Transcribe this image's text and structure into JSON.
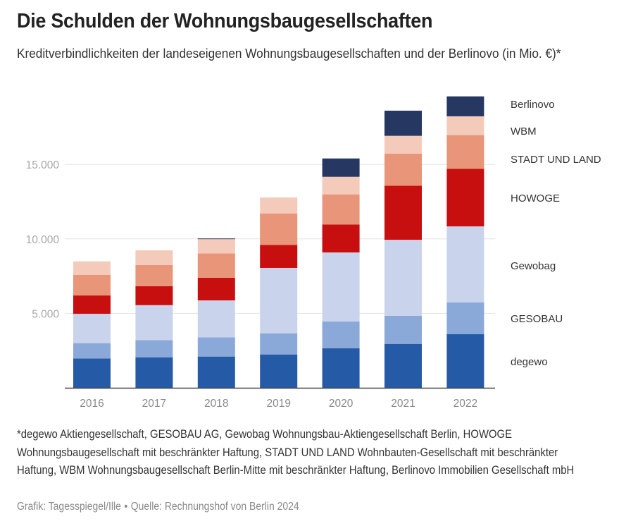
{
  "header": {
    "title": "Die Schulden der Wohnungsbaugesellschaften",
    "subtitle": "Kreditverbindlichkeiten der landeseigenen Wohnungsbaugesellschaften und der Berlinovo (in Mio. €)*"
  },
  "footer": {
    "note": "*degewo Aktiengesellschaft, GESOBAU AG, Gewobag Wohnungsbau-Aktiengesellschaft Berlin, HOWOGE Wohnungsbaugesellschaft mit beschränkter Haftung, STADT UND LAND Wohnbauten-Gesellschaft mit beschränkter Haftung, WBM Wohnungsbaugesellschaft Berlin-Mitte mit beschränkter Haftung, Berlinovo Immobilien Gesellschaft mbH",
    "credit": "Grafik: Tagesspiegel/Ille",
    "separator": "•",
    "source": "Quelle: Rechnungshof von Berlin 2024"
  },
  "chart_data": {
    "type": "bar",
    "stacked": true,
    "title": "Die Schulden der Wohnungsbaugesellschaften",
    "subtitle": "Kreditverbindlichkeiten der landeseigenen Wohnungsbaugesellschaften und der Berlinovo (in Mio. €)*",
    "xlabel": "",
    "ylabel": "",
    "unit": "Mio. €",
    "categories": [
      "2016",
      "2017",
      "2018",
      "2019",
      "2020",
      "2021",
      "2022"
    ],
    "ylim": [
      0,
      20000
    ],
    "yticks": [
      5000,
      10000,
      15000
    ],
    "ytick_labels": [
      "5.000",
      "10.000",
      "15.000"
    ],
    "grid": true,
    "legend": "right (labels aligned to stack segments)",
    "series": [
      {
        "name": "degewo",
        "color": "#255ba6",
        "values": [
          1970,
          2050,
          2100,
          2240,
          2650,
          2950,
          3600
        ]
      },
      {
        "name": "GESOBAU",
        "color": "#8aa9d8",
        "values": [
          1030,
          1150,
          1290,
          1420,
          1800,
          1880,
          2130
        ]
      },
      {
        "name": "Gewobag",
        "color": "#c9d4ec",
        "values": [
          1970,
          2350,
          2480,
          4390,
          4640,
          5110,
          5110
        ]
      },
      {
        "name": "HOWOGE",
        "color": "#c80f0f",
        "values": [
          1230,
          1270,
          1520,
          1550,
          1880,
          3630,
          3870
        ]
      },
      {
        "name": "STADT UND LAND",
        "color": "#e8957a",
        "values": [
          1390,
          1430,
          1640,
          2110,
          2020,
          2160,
          2260
        ]
      },
      {
        "name": "WBM",
        "color": "#f4cbba",
        "values": [
          900,
          980,
          970,
          1070,
          1180,
          1190,
          1260
        ]
      },
      {
        "name": "Berlinovo",
        "color": "#263862",
        "values": [
          0,
          0,
          30,
          0,
          1230,
          1690,
          1340
        ]
      }
    ]
  }
}
